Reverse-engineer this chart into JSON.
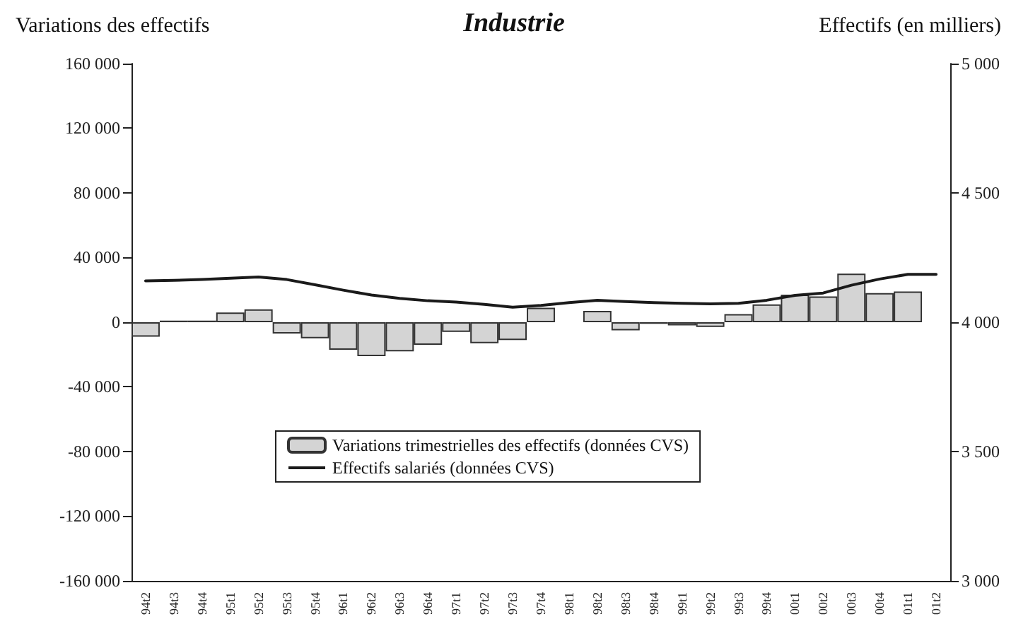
{
  "chart_data": {
    "type": "bar",
    "title": "Industrie",
    "ylabel": "Variations des effectifs",
    "y2label": "Effectifs (en milliers)",
    "categories": [
      "94t2",
      "94t3",
      "94t4",
      "95t1",
      "95t2",
      "95t3",
      "95t4",
      "96t1",
      "96t2",
      "96t3",
      "96t4",
      "97t1",
      "97t2",
      "97t3",
      "97t4",
      "98t1",
      "98t2",
      "98t3",
      "98t4",
      "99t1",
      "99t2",
      "99t3",
      "99t4",
      "00t1",
      "00t2",
      "00t3",
      "00t4",
      "01t1",
      "01t2"
    ],
    "series": [
      {
        "name": "Variations trimestrielles des effectifs (données CVS)",
        "color": "#d4d4d4",
        "values": [
          -9000,
          1000,
          1000,
          6000,
          8000,
          -7000,
          -10000,
          -17000,
          -21000,
          -18000,
          -14000,
          -6000,
          -13000,
          -11000,
          9000,
          null,
          7000,
          -5000,
          -1000,
          -2000,
          -3000,
          5000,
          11000,
          17000,
          16000,
          30000,
          18000,
          19000,
          null
        ]
      },
      {
        "name": "Effectifs salariés (données CVS)",
        "type": "line",
        "axis": "y2",
        "color": "#1a1a1a",
        "values": [
          4160,
          4162,
          4165,
          4170,
          4175,
          4165,
          4145,
          4124,
          4105,
          4092,
          4083,
          4078,
          4069,
          4058,
          4065,
          4076,
          4085,
          4080,
          4076,
          4073,
          4071,
          4073,
          4085,
          4104,
          4113,
          4143,
          4167,
          4185,
          4185
        ]
      }
    ],
    "ylim": [
      -160000,
      160000
    ],
    "yticks": [
      {
        "value": -160000,
        "label": "-160 000"
      },
      {
        "value": -120000,
        "label": "-120 000"
      },
      {
        "value": -80000,
        "label": "-80 000"
      },
      {
        "value": -40000,
        "label": "-40 000"
      },
      0,
      {
        "value": 40000,
        "label": "40 000"
      },
      {
        "value": 80000,
        "label": "80 000"
      },
      {
        "value": 120000,
        "label": "120 000"
      },
      {
        "value": 160000,
        "label": "160 000"
      }
    ],
    "y2lim": [
      3000,
      5000
    ],
    "y2ticks": [
      {
        "value": 3000,
        "label": "3 000"
      },
      {
        "value": 3500,
        "label": "3 500"
      },
      {
        "value": 4000,
        "label": "4 000"
      },
      {
        "value": 4500,
        "label": "4 500"
      },
      {
        "value": 5000,
        "label": "5 000"
      }
    ],
    "legend": "bottom",
    "grid": false,
    "marker": "none",
    "line_style": "solid"
  }
}
